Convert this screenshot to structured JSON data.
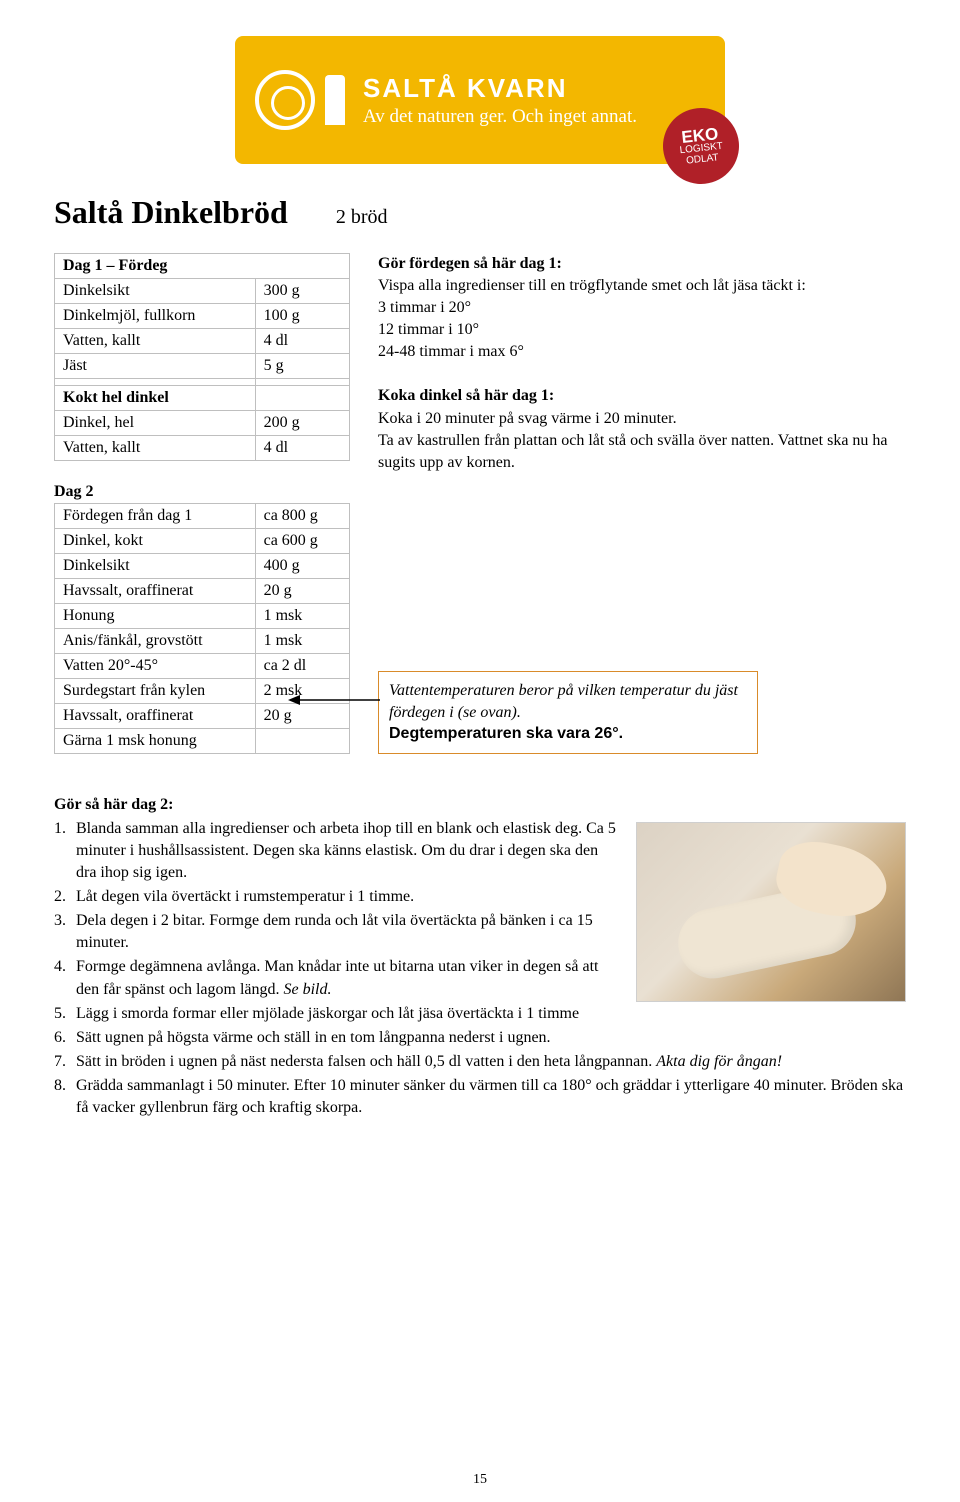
{
  "logo": {
    "brand": "SALTÅ KVARN",
    "tagline": "Av det naturen ger. Och inget annat.",
    "badge_line1": "EKO",
    "badge_line2": "LOGISKT",
    "badge_line3": "ODLAT"
  },
  "title": "Saltå Dinkelbröd",
  "yield": "2 bröd",
  "day1_label": "Dag 1 – Fördeg",
  "day1_rows": [
    [
      "Dinkelsikt",
      "300 g"
    ],
    [
      "Dinkelmjöl, fullkorn",
      "100 g"
    ],
    [
      "Vatten, kallt",
      "4 dl"
    ],
    [
      "Jäst",
      "5 g"
    ]
  ],
  "kokt_header": "Kokt hel dinkel",
  "kokt_rows": [
    [
      "Dinkel, hel",
      "200 g"
    ],
    [
      "Vatten, kallt",
      "4 dl"
    ]
  ],
  "right1_h": "Gör fördegen så här dag 1:",
  "right1_body": "Vispa alla ingredienser till en trögflytande smet och låt jäsa täckt i:\n3 timmar i 20°\n12 timmar i 10°\n24-48 timmar i max 6°",
  "right2_h": "Koka dinkel  så här dag 1:",
  "right2_body": "Koka i 20 minuter på svag värme i 20 minuter.\nTa av kastrullen från plattan och låt stå och svälla över natten. Vattnet ska nu ha sugits upp av kornen.",
  "day2_label": "Dag 2",
  "day2_rows": [
    [
      "Fördegen från dag 1",
      "ca 800 g"
    ],
    [
      "Dinkel, kokt",
      "ca 600 g"
    ],
    [
      "Dinkelsikt",
      "400 g"
    ],
    [
      "Havssalt, oraffinerat",
      "20 g"
    ],
    [
      "Honung",
      "1 msk"
    ],
    [
      "Anis/fänkål, grovstött",
      "1 msk"
    ],
    [
      "Vatten 20°-45°",
      "ca 2 dl"
    ],
    [
      "Surdegstart från kylen",
      "2 msk"
    ],
    [
      "Havssalt, oraffinerat",
      "20 g"
    ],
    [
      "Gärna 1 msk honung",
      ""
    ]
  ],
  "note_italic": "Vattentemperaturen beror på vilken temperatur du jäst fördegen i (se ovan).",
  "note_bold": "Degtemperaturen ska vara 26°.",
  "instr_h": "Gör så här dag 2:",
  "instructions": [
    {
      "n": "1.",
      "t": "Blanda samman alla ingredienser och arbeta ihop till en blank och elastisk deg. Ca 5 minuter i hushållsassistent. Degen ska känns elastisk. Om du drar i degen ska den dra ihop sig igen."
    },
    {
      "n": "2.",
      "t": "Låt degen vila övertäckt i rumstemperatur i 1 timme."
    },
    {
      "n": "3.",
      "t": "Dela degen i 2 bitar. Formge dem runda och låt vila övertäckta på bänken i ca 15 minuter."
    },
    {
      "n": "4.",
      "t": "Formge degämnena avlånga. Man knådar inte ut bitarna utan viker in degen så att den får spänst och lagom längd. ",
      "it": "Se bild."
    },
    {
      "n": "5.",
      "t": "Lägg i smorda formar eller mjölade jäskorgar och låt jäsa övertäckta i 1 timme"
    },
    {
      "n": "6.",
      "t": "Sätt ugnen på högsta värme och ställ in en tom långpanna nederst i ugnen."
    },
    {
      "n": "7.",
      "t": "Sätt in bröden i ugnen på näst nedersta falsen och häll 0,5 dl vatten i den heta långpannan. ",
      "it": "Akta dig för ångan!"
    },
    {
      "n": "8.",
      "t": "Grädda sammanlagt i 50 minuter. Efter 10 minuter sänker du värmen till ca 180° och gräddar i ytterligare 40 minuter.  Bröden ska få vacker gyllenbrun färg och kraftig skorpa."
    }
  ],
  "page_number": "15",
  "colors": {
    "logo_bg": "#f3b700",
    "badge_bg": "#b02028",
    "note_border": "#d98b2a",
    "table_border": "#bfbfbf"
  }
}
